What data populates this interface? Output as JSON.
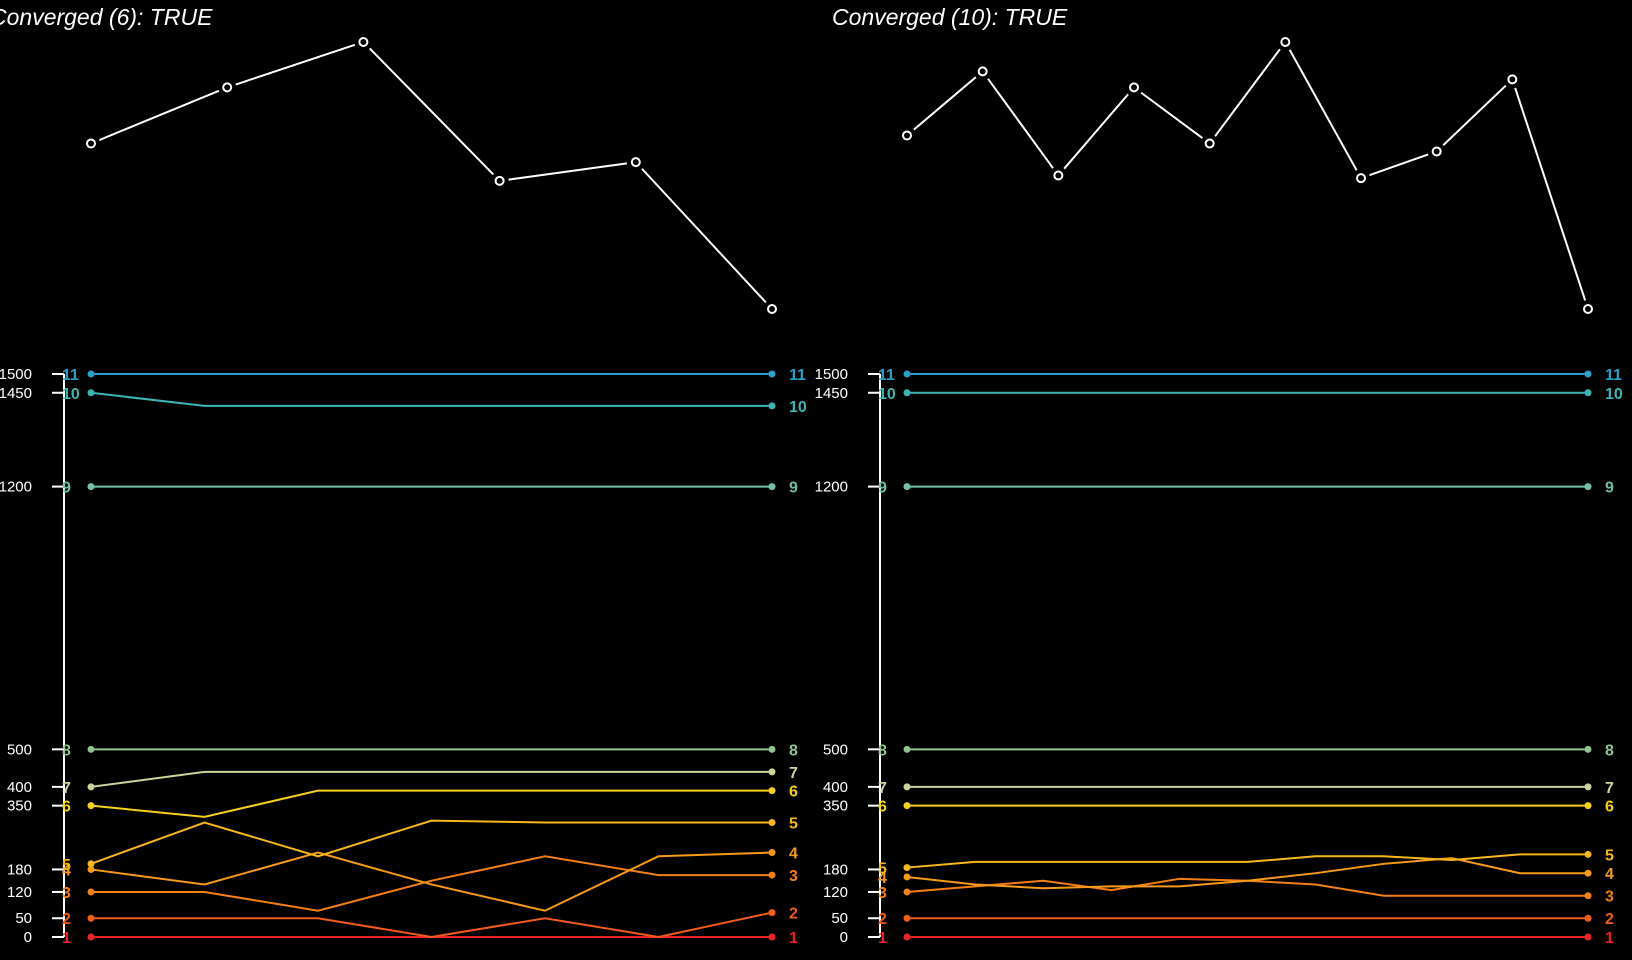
{
  "chart_data": [
    {
      "type": "line",
      "title": "Converged (6): TRUE",
      "objective": {
        "x": [
          1,
          2,
          3,
          4,
          5,
          6
        ],
        "y": [
          0.62,
          0.83,
          1.0,
          0.48,
          0.55,
          0.0
        ]
      },
      "y_ticks": [
        0,
        50,
        120,
        180,
        350,
        400,
        500,
        1200,
        1450,
        1500
      ],
      "ylim": [
        0,
        1500
      ],
      "grid": false,
      "series": [
        {
          "label": "1",
          "color": "#ee2222",
          "values": [
            0,
            0,
            0,
            0,
            0,
            0,
            0
          ]
        },
        {
          "label": "2",
          "color": "#f25c1c",
          "values": [
            50,
            50,
            50,
            0,
            50,
            0,
            65
          ]
        },
        {
          "label": "3",
          "color": "#f57f17",
          "values": [
            120,
            120,
            70,
            150,
            215,
            165,
            165
          ]
        },
        {
          "label": "4",
          "color": "#f79a1a",
          "values": [
            180,
            140,
            225,
            140,
            70,
            215,
            225
          ]
        },
        {
          "label": "5",
          "color": "#f8b71d",
          "values": [
            195,
            305,
            215,
            310,
            305,
            305,
            305
          ]
        },
        {
          "label": "6",
          "color": "#f7d01e",
          "values": [
            350,
            320,
            390,
            390,
            390,
            390,
            390
          ]
        },
        {
          "label": "7",
          "color": "#cbd49b",
          "values": [
            400,
            440,
            440,
            440,
            440,
            440,
            440
          ]
        },
        {
          "label": "8",
          "color": "#8fc48f",
          "values": [
            500,
            500,
            500,
            500,
            500,
            500,
            500
          ]
        },
        {
          "label": "9",
          "color": "#6fc2a8",
          "values": [
            1200,
            1200,
            1200,
            1200,
            1200,
            1200,
            1200
          ]
        },
        {
          "label": "10",
          "color": "#3db5b5",
          "values": [
            1450,
            1415,
            1415,
            1415,
            1415,
            1415,
            1415
          ]
        },
        {
          "label": "11",
          "color": "#2a9fc8",
          "values": [
            1500,
            1500,
            1500,
            1500,
            1500,
            1500,
            1500
          ]
        }
      ]
    },
    {
      "type": "line",
      "title": "Converged (10): TRUE",
      "objective": {
        "x": [
          1,
          2,
          3,
          4,
          5,
          6,
          7,
          8,
          9,
          10
        ],
        "y": [
          0.65,
          0.89,
          0.5,
          0.83,
          0.62,
          1.0,
          0.49,
          0.59,
          0.86,
          0.0
        ]
      },
      "y_ticks": [
        0,
        50,
        120,
        180,
        350,
        400,
        500,
        1200,
        1450,
        1500
      ],
      "ylim": [
        0,
        1500
      ],
      "grid": false,
      "series": [
        {
          "label": "1",
          "color": "#ee2222",
          "values": [
            0,
            0,
            0,
            0,
            0,
            0,
            0,
            0,
            0,
            0,
            0
          ]
        },
        {
          "label": "2",
          "color": "#f25c1c",
          "values": [
            50,
            50,
            50,
            50,
            50,
            50,
            50,
            50,
            50,
            50,
            50
          ]
        },
        {
          "label": "3",
          "color": "#f57f17",
          "values": [
            120,
            135,
            150,
            125,
            155,
            150,
            140,
            110,
            110,
            110,
            110
          ]
        },
        {
          "label": "4",
          "color": "#f79a1a",
          "values": [
            160,
            140,
            130,
            135,
            135,
            150,
            170,
            195,
            210,
            170,
            170
          ]
        },
        {
          "label": "5",
          "color": "#f8b71d",
          "values": [
            185,
            200,
            200,
            200,
            200,
            200,
            215,
            215,
            205,
            220,
            220
          ]
        },
        {
          "label": "6",
          "color": "#f7d01e",
          "values": [
            350,
            350,
            350,
            350,
            350,
            350,
            350,
            350,
            350,
            350,
            350
          ]
        },
        {
          "label": "7",
          "color": "#cbd49b",
          "values": [
            400,
            400,
            400,
            400,
            400,
            400,
            400,
            400,
            400,
            400,
            400
          ]
        },
        {
          "label": "8",
          "color": "#8fc48f",
          "values": [
            500,
            500,
            500,
            500,
            500,
            500,
            500,
            500,
            500,
            500,
            500
          ]
        },
        {
          "label": "9",
          "color": "#6fc2a8",
          "values": [
            1200,
            1200,
            1200,
            1200,
            1200,
            1200,
            1200,
            1200,
            1200,
            1200,
            1200
          ]
        },
        {
          "label": "10",
          "color": "#3db5b5",
          "values": [
            1450,
            1450,
            1450,
            1450,
            1450,
            1450,
            1450,
            1450,
            1450,
            1450,
            1450
          ]
        },
        {
          "label": "11",
          "color": "#2a9fc8",
          "values": [
            1500,
            1500,
            1500,
            1500,
            1500,
            1500,
            1500,
            1500,
            1500,
            1500,
            1500
          ]
        }
      ]
    }
  ]
}
